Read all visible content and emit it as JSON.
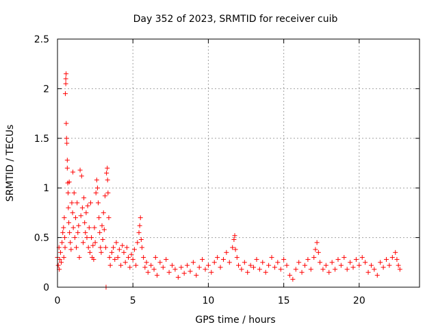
{
  "chart_data": {
    "type": "scatter",
    "title": "Day 352 of 2023, SRMTID for receiver cuib",
    "xlabel": "GPS time / hours",
    "ylabel": "SRMTID / TECUs",
    "xlim": [
      0,
      24
    ],
    "ylim": [
      0,
      2.5
    ],
    "xticks": [
      0,
      5,
      10,
      15,
      20
    ],
    "yticks": [
      0,
      0.5,
      1,
      1.5,
      2,
      2.5
    ],
    "xtick_labels": [
      "0",
      "5",
      "10",
      "15",
      "20"
    ],
    "ytick_labels": [
      "0",
      "0.5",
      "1",
      "1.5",
      "2",
      "2.5"
    ],
    "grid": true,
    "marker": "+",
    "series": [
      {
        "name": "SRMTID",
        "color": "#ff0000",
        "points": [
          [
            0.0,
            0.3
          ],
          [
            0.05,
            0.22
          ],
          [
            0.1,
            0.4
          ],
          [
            0.12,
            0.18
          ],
          [
            0.15,
            0.28
          ],
          [
            0.2,
            0.35
          ],
          [
            0.25,
            0.25
          ],
          [
            0.3,
            0.45
          ],
          [
            0.35,
            0.55
          ],
          [
            0.4,
            0.6
          ],
          [
            0.42,
            0.3
          ],
          [
            0.45,
            0.7
          ],
          [
            0.48,
            0.5
          ],
          [
            0.5,
            0.4
          ],
          [
            0.52,
            1.95
          ],
          [
            0.55,
            2.05
          ],
          [
            0.55,
            2.1
          ],
          [
            0.57,
            2.15
          ],
          [
            0.58,
            1.65
          ],
          [
            0.6,
            1.5
          ],
          [
            0.62,
            1.45
          ],
          [
            0.65,
            1.28
          ],
          [
            0.65,
            1.2
          ],
          [
            0.68,
            1.05
          ],
          [
            0.7,
            0.95
          ],
          [
            0.72,
            0.8
          ],
          [
            0.75,
            0.65
          ],
          [
            0.78,
            1.06
          ],
          [
            0.8,
            0.55
          ],
          [
            0.85,
            0.45
          ],
          [
            0.9,
            0.38
          ],
          [
            0.95,
            0.85
          ],
          [
            1.0,
            0.75
          ],
          [
            1.02,
            1.16
          ],
          [
            1.05,
            0.6
          ],
          [
            1.1,
            0.95
          ],
          [
            1.15,
            0.5
          ],
          [
            1.2,
            0.7
          ],
          [
            1.25,
            0.4
          ],
          [
            1.3,
            0.85
          ],
          [
            1.35,
            0.55
          ],
          [
            1.4,
            0.62
          ],
          [
            1.45,
            0.3
          ],
          [
            1.5,
            1.18
          ],
          [
            1.55,
            0.72
          ],
          [
            1.6,
            1.12
          ],
          [
            1.65,
            0.8
          ],
          [
            1.7,
            0.45
          ],
          [
            1.75,
            0.9
          ],
          [
            1.8,
            0.65
          ],
          [
            1.85,
            0.55
          ],
          [
            1.9,
            0.75
          ],
          [
            1.95,
            0.5
          ],
          [
            2.0,
            0.82
          ],
          [
            2.05,
            0.4
          ],
          [
            2.1,
            0.6
          ],
          [
            2.15,
            0.35
          ],
          [
            2.2,
            0.85
          ],
          [
            2.25,
            0.5
          ],
          [
            2.3,
            0.3
          ],
          [
            2.35,
            0.42
          ],
          [
            2.4,
            0.28
          ],
          [
            2.45,
            0.6
          ],
          [
            2.5,
            0.45
          ],
          [
            2.55,
            0.95
          ],
          [
            2.6,
            1.08
          ],
          [
            2.65,
            1.0
          ],
          [
            2.7,
            0.85
          ],
          [
            2.75,
            0.7
          ],
          [
            2.8,
            0.55
          ],
          [
            2.85,
            0.4
          ],
          [
            2.9,
            0.35
          ],
          [
            2.95,
            0.62
          ],
          [
            3.0,
            0.48
          ],
          [
            3.05,
            0.75
          ],
          [
            3.1,
            0.58
          ],
          [
            3.15,
            0.92
          ],
          [
            3.2,
            0.4
          ],
          [
            3.22,
            0.0
          ],
          [
            3.25,
            1.15
          ],
          [
            3.3,
            1.2
          ],
          [
            3.32,
            1.08
          ],
          [
            3.35,
            0.95
          ],
          [
            3.4,
            0.7
          ],
          [
            3.45,
            0.3
          ],
          [
            3.5,
            0.22
          ],
          [
            3.6,
            0.35
          ],
          [
            3.7,
            0.4
          ],
          [
            3.8,
            0.28
          ],
          [
            3.9,
            0.45
          ],
          [
            4.0,
            0.3
          ],
          [
            4.1,
            0.38
          ],
          [
            4.2,
            0.22
          ],
          [
            4.3,
            0.42
          ],
          [
            4.4,
            0.35
          ],
          [
            4.5,
            0.25
          ],
          [
            4.6,
            0.4
          ],
          [
            4.7,
            0.3
          ],
          [
            4.8,
            0.2
          ],
          [
            4.9,
            0.33
          ],
          [
            5.0,
            0.28
          ],
          [
            5.1,
            0.38
          ],
          [
            5.2,
            0.22
          ],
          [
            5.3,
            0.45
          ],
          [
            5.4,
            0.55
          ],
          [
            5.45,
            0.62
          ],
          [
            5.5,
            0.7
          ],
          [
            5.55,
            0.48
          ],
          [
            5.6,
            0.4
          ],
          [
            5.7,
            0.3
          ],
          [
            5.8,
            0.2
          ],
          [
            5.9,
            0.25
          ],
          [
            6.0,
            0.15
          ],
          [
            6.2,
            0.22
          ],
          [
            6.4,
            0.18
          ],
          [
            6.5,
            0.3
          ],
          [
            6.6,
            0.12
          ],
          [
            6.8,
            0.25
          ],
          [
            7.0,
            0.2
          ],
          [
            7.2,
            0.28
          ],
          [
            7.4,
            0.15
          ],
          [
            7.6,
            0.22
          ],
          [
            7.8,
            0.18
          ],
          [
            8.0,
            0.1
          ],
          [
            8.2,
            0.2
          ],
          [
            8.4,
            0.14
          ],
          [
            8.6,
            0.22
          ],
          [
            8.8,
            0.16
          ],
          [
            9.0,
            0.25
          ],
          [
            9.2,
            0.12
          ],
          [
            9.4,
            0.2
          ],
          [
            9.6,
            0.28
          ],
          [
            9.8,
            0.18
          ],
          [
            10.0,
            0.22
          ],
          [
            10.2,
            0.15
          ],
          [
            10.4,
            0.25
          ],
          [
            10.6,
            0.3
          ],
          [
            10.8,
            0.2
          ],
          [
            11.0,
            0.28
          ],
          [
            11.2,
            0.35
          ],
          [
            11.4,
            0.25
          ],
          [
            11.6,
            0.4
          ],
          [
            11.7,
            0.48
          ],
          [
            11.75,
            0.52
          ],
          [
            11.8,
            0.38
          ],
          [
            11.9,
            0.3
          ],
          [
            12.0,
            0.22
          ],
          [
            12.2,
            0.18
          ],
          [
            12.4,
            0.25
          ],
          [
            12.6,
            0.15
          ],
          [
            12.8,
            0.22
          ],
          [
            13.0,
            0.2
          ],
          [
            13.2,
            0.28
          ],
          [
            13.4,
            0.18
          ],
          [
            13.6,
            0.25
          ],
          [
            13.8,
            0.15
          ],
          [
            14.0,
            0.22
          ],
          [
            14.2,
            0.3
          ],
          [
            14.4,
            0.2
          ],
          [
            14.6,
            0.25
          ],
          [
            14.8,
            0.18
          ],
          [
            15.0,
            0.28
          ],
          [
            15.2,
            0.22
          ],
          [
            15.4,
            0.12
          ],
          [
            15.6,
            0.08
          ],
          [
            15.8,
            0.18
          ],
          [
            16.0,
            0.25
          ],
          [
            16.2,
            0.15
          ],
          [
            16.4,
            0.22
          ],
          [
            16.6,
            0.28
          ],
          [
            16.8,
            0.18
          ],
          [
            17.0,
            0.3
          ],
          [
            17.1,
            0.38
          ],
          [
            17.2,
            0.45
          ],
          [
            17.3,
            0.35
          ],
          [
            17.4,
            0.25
          ],
          [
            17.6,
            0.18
          ],
          [
            17.8,
            0.22
          ],
          [
            18.0,
            0.15
          ],
          [
            18.2,
            0.25
          ],
          [
            18.4,
            0.18
          ],
          [
            18.6,
            0.28
          ],
          [
            18.8,
            0.22
          ],
          [
            19.0,
            0.3
          ],
          [
            19.2,
            0.18
          ],
          [
            19.4,
            0.25
          ],
          [
            19.6,
            0.2
          ],
          [
            19.8,
            0.28
          ],
          [
            20.0,
            0.22
          ],
          [
            20.2,
            0.3
          ],
          [
            20.4,
            0.25
          ],
          [
            20.6,
            0.15
          ],
          [
            20.8,
            0.22
          ],
          [
            21.0,
            0.18
          ],
          [
            21.2,
            0.12
          ],
          [
            21.4,
            0.25
          ],
          [
            21.6,
            0.2
          ],
          [
            21.8,
            0.28
          ],
          [
            22.0,
            0.22
          ],
          [
            22.2,
            0.3
          ],
          [
            22.4,
            0.35
          ],
          [
            22.5,
            0.28
          ],
          [
            22.6,
            0.22
          ],
          [
            22.7,
            0.18
          ]
        ]
      }
    ]
  }
}
